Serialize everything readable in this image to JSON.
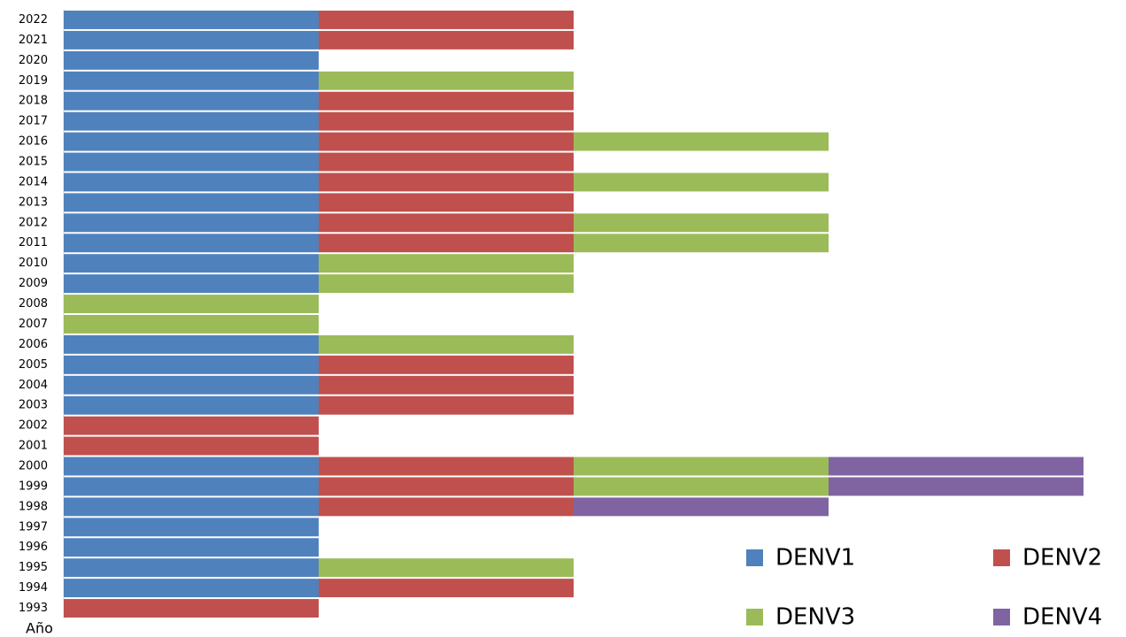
{
  "chart_data": {
    "type": "stacked-barh",
    "y_label": "Año",
    "categories": [
      "1993",
      "1994",
      "1995",
      "1996",
      "1997",
      "1998",
      "1999",
      "2000",
      "2001",
      "2002",
      "2003",
      "2004",
      "2005",
      "2006",
      "2007",
      "2008",
      "2009",
      "2010",
      "2011",
      "2012",
      "2013",
      "2014",
      "2015",
      "2016",
      "2017",
      "2018",
      "2019",
      "2020",
      "2021",
      "2022"
    ],
    "series": [
      {
        "name": "DENV1",
        "color": "#4f81bd",
        "values": [
          0,
          1,
          1,
          1,
          1,
          1,
          1,
          1,
          0,
          0,
          1,
          1,
          1,
          1,
          0,
          0,
          1,
          1,
          1,
          1,
          1,
          1,
          1,
          1,
          1,
          1,
          1,
          1,
          1,
          1
        ]
      },
      {
        "name": "DENV2",
        "color": "#c0504d",
        "values": [
          1,
          1,
          0,
          0,
          0,
          1,
          1,
          1,
          1,
          1,
          1,
          1,
          1,
          0,
          0,
          0,
          0,
          0,
          1,
          1,
          1,
          1,
          1,
          1,
          1,
          1,
          0,
          0,
          1,
          1
        ]
      },
      {
        "name": "DENV3",
        "color": "#9bbb59",
        "values": [
          0,
          0,
          1,
          0,
          0,
          0,
          1,
          1,
          0,
          0,
          0,
          0,
          0,
          1,
          1,
          1,
          1,
          1,
          1,
          1,
          0,
          1,
          0,
          1,
          0,
          0,
          1,
          0,
          0,
          0
        ]
      },
      {
        "name": "DENV4",
        "color": "#8064a2",
        "values": [
          0,
          0,
          0,
          0,
          0,
          1,
          1,
          1,
          0,
          0,
          0,
          0,
          0,
          0,
          0,
          0,
          0,
          0,
          0,
          0,
          0,
          0,
          0,
          0,
          0,
          0,
          0,
          0,
          0,
          0
        ]
      }
    ],
    "legend": "bottom-right"
  }
}
